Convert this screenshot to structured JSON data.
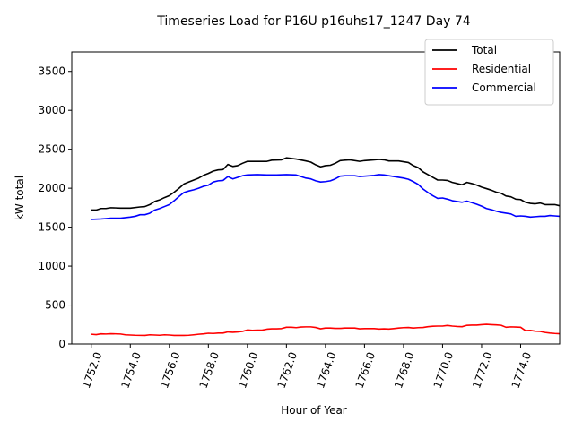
{
  "chart_data": {
    "type": "line",
    "title": "Timeseries Load for P16U p16uhs17_1247  Day 74",
    "xlabel": "Hour of Year",
    "ylabel": "kW total",
    "xlim": [
      1751.0,
      1776.0
    ],
    "ylim": [
      0,
      3750
    ],
    "xticks": [
      1752,
      1754,
      1756,
      1758,
      1760,
      1762,
      1764,
      1766,
      1768,
      1770,
      1772,
      1774
    ],
    "xtick_labels": [
      "1752.0",
      "1754.0",
      "1756.0",
      "1758.0",
      "1760.0",
      "1762.0",
      "1764.0",
      "1766.0",
      "1768.0",
      "1770.0",
      "1772.0",
      "1774.0"
    ],
    "yticks": [
      0,
      500,
      1000,
      1500,
      2000,
      2500,
      3000,
      3500
    ],
    "ytick_labels": [
      "0",
      "500",
      "1000",
      "1500",
      "2000",
      "2500",
      "3000",
      "3500"
    ],
    "legend_position": "top-right",
    "series": [
      {
        "name": "Total",
        "color": "#000000",
        "points": [
          [
            1752.0,
            1720
          ],
          [
            1752.25,
            1720
          ],
          [
            1752.5,
            1740
          ],
          [
            1752.75,
            1740
          ],
          [
            1753.0,
            1750
          ],
          [
            1753.5,
            1745
          ],
          [
            1754.0,
            1745
          ],
          [
            1754.5,
            1760
          ],
          [
            1754.75,
            1765
          ],
          [
            1755.0,
            1790
          ],
          [
            1755.25,
            1830
          ],
          [
            1755.5,
            1850
          ],
          [
            1755.75,
            1880
          ],
          [
            1756.0,
            1905
          ],
          [
            1756.25,
            1950
          ],
          [
            1756.5,
            2000
          ],
          [
            1756.75,
            2055
          ],
          [
            1757.0,
            2080
          ],
          [
            1757.25,
            2105
          ],
          [
            1757.5,
            2130
          ],
          [
            1757.75,
            2165
          ],
          [
            1758.0,
            2190
          ],
          [
            1758.25,
            2220
          ],
          [
            1758.5,
            2235
          ],
          [
            1758.75,
            2240
          ],
          [
            1759.0,
            2305
          ],
          [
            1759.25,
            2280
          ],
          [
            1759.5,
            2290
          ],
          [
            1759.75,
            2320
          ],
          [
            1760.0,
            2345
          ],
          [
            1760.5,
            2345
          ],
          [
            1761.0,
            2345
          ],
          [
            1761.25,
            2360
          ],
          [
            1761.75,
            2365
          ],
          [
            1762.0,
            2390
          ],
          [
            1762.5,
            2375
          ],
          [
            1763.0,
            2350
          ],
          [
            1763.25,
            2335
          ],
          [
            1763.5,
            2300
          ],
          [
            1763.75,
            2275
          ],
          [
            1764.0,
            2290
          ],
          [
            1764.25,
            2295
          ],
          [
            1764.5,
            2320
          ],
          [
            1764.75,
            2355
          ],
          [
            1765.0,
            2360
          ],
          [
            1765.25,
            2365
          ],
          [
            1765.75,
            2345
          ],
          [
            1766.0,
            2355
          ],
          [
            1766.5,
            2365
          ],
          [
            1766.75,
            2370
          ],
          [
            1767.0,
            2365
          ],
          [
            1767.25,
            2350
          ],
          [
            1767.75,
            2350
          ],
          [
            1768.0,
            2340
          ],
          [
            1768.25,
            2330
          ],
          [
            1768.5,
            2290
          ],
          [
            1768.75,
            2265
          ],
          [
            1769.0,
            2210
          ],
          [
            1769.25,
            2175
          ],
          [
            1769.5,
            2140
          ],
          [
            1769.75,
            2105
          ],
          [
            1770.0,
            2105
          ],
          [
            1770.25,
            2100
          ],
          [
            1770.5,
            2075
          ],
          [
            1770.75,
            2060
          ],
          [
            1771.0,
            2045
          ],
          [
            1771.25,
            2075
          ],
          [
            1771.5,
            2060
          ],
          [
            1771.75,
            2040
          ],
          [
            1772.0,
            2015
          ],
          [
            1772.25,
            1995
          ],
          [
            1772.5,
            1975
          ],
          [
            1772.75,
            1950
          ],
          [
            1773.0,
            1935
          ],
          [
            1773.25,
            1900
          ],
          [
            1773.5,
            1890
          ],
          [
            1773.75,
            1860
          ],
          [
            1774.0,
            1855
          ],
          [
            1774.25,
            1820
          ],
          [
            1774.5,
            1805
          ],
          [
            1774.75,
            1800
          ],
          [
            1775.0,
            1810
          ],
          [
            1775.25,
            1790
          ],
          [
            1775.5,
            1790
          ],
          [
            1775.75,
            1790
          ],
          [
            1776.0,
            1775
          ]
        ]
      },
      {
        "name": "Residential",
        "color": "#ff0000",
        "points": [
          [
            1752.0,
            125
          ],
          [
            1752.25,
            120
          ],
          [
            1752.5,
            130
          ],
          [
            1752.75,
            128
          ],
          [
            1753.0,
            132
          ],
          [
            1753.5,
            128
          ],
          [
            1753.75,
            118
          ],
          [
            1754.0,
            115
          ],
          [
            1754.25,
            112
          ],
          [
            1754.75,
            110
          ],
          [
            1755.0,
            118
          ],
          [
            1755.25,
            115
          ],
          [
            1755.5,
            112
          ],
          [
            1755.75,
            118
          ],
          [
            1756.0,
            115
          ],
          [
            1756.25,
            110
          ],
          [
            1756.75,
            110
          ],
          [
            1757.0,
            112
          ],
          [
            1757.25,
            118
          ],
          [
            1757.5,
            125
          ],
          [
            1757.75,
            130
          ],
          [
            1758.0,
            138
          ],
          [
            1758.25,
            135
          ],
          [
            1758.5,
            140
          ],
          [
            1758.75,
            140
          ],
          [
            1759.0,
            155
          ],
          [
            1759.25,
            150
          ],
          [
            1759.5,
            155
          ],
          [
            1759.75,
            162
          ],
          [
            1760.0,
            180
          ],
          [
            1760.25,
            175
          ],
          [
            1760.5,
            178
          ],
          [
            1760.75,
            178
          ],
          [
            1761.0,
            190
          ],
          [
            1761.25,
            195
          ],
          [
            1761.5,
            195
          ],
          [
            1761.75,
            198
          ],
          [
            1762.0,
            215
          ],
          [
            1762.25,
            215
          ],
          [
            1762.5,
            210
          ],
          [
            1762.75,
            218
          ],
          [
            1763.0,
            220
          ],
          [
            1763.25,
            220
          ],
          [
            1763.5,
            212
          ],
          [
            1763.75,
            195
          ],
          [
            1764.0,
            205
          ],
          [
            1764.25,
            205
          ],
          [
            1764.5,
            200
          ],
          [
            1764.75,
            200
          ],
          [
            1765.0,
            205
          ],
          [
            1765.25,
            205
          ],
          [
            1765.5,
            205
          ],
          [
            1765.75,
            195
          ],
          [
            1766.0,
            198
          ],
          [
            1766.5,
            198
          ],
          [
            1766.75,
            192
          ],
          [
            1767.0,
            195
          ],
          [
            1767.25,
            192
          ],
          [
            1767.5,
            198
          ],
          [
            1767.75,
            205
          ],
          [
            1768.0,
            210
          ],
          [
            1768.25,
            212
          ],
          [
            1768.5,
            205
          ],
          [
            1768.75,
            210
          ],
          [
            1769.0,
            212
          ],
          [
            1769.25,
            222
          ],
          [
            1769.5,
            228
          ],
          [
            1769.75,
            230
          ],
          [
            1770.0,
            230
          ],
          [
            1770.25,
            238
          ],
          [
            1770.5,
            230
          ],
          [
            1770.75,
            225
          ],
          [
            1771.0,
            222
          ],
          [
            1771.25,
            240
          ],
          [
            1771.5,
            242
          ],
          [
            1771.75,
            242
          ],
          [
            1772.0,
            248
          ],
          [
            1772.25,
            252
          ],
          [
            1772.5,
            248
          ],
          [
            1772.75,
            245
          ],
          [
            1773.0,
            240
          ],
          [
            1773.25,
            215
          ],
          [
            1773.5,
            220
          ],
          [
            1773.75,
            218
          ],
          [
            1774.0,
            215
          ],
          [
            1774.25,
            172
          ],
          [
            1774.5,
            175
          ],
          [
            1774.75,
            165
          ],
          [
            1775.0,
            162
          ],
          [
            1775.25,
            148
          ],
          [
            1775.5,
            140
          ],
          [
            1775.75,
            135
          ],
          [
            1776.0,
            132
          ]
        ]
      },
      {
        "name": "Commercial",
        "color": "#0000ff",
        "points": [
          [
            1752.0,
            1600
          ],
          [
            1752.5,
            1605
          ],
          [
            1752.75,
            1610
          ],
          [
            1753.0,
            1615
          ],
          [
            1753.5,
            1615
          ],
          [
            1754.0,
            1630
          ],
          [
            1754.25,
            1640
          ],
          [
            1754.5,
            1660
          ],
          [
            1754.75,
            1660
          ],
          [
            1755.0,
            1680
          ],
          [
            1755.25,
            1720
          ],
          [
            1755.5,
            1740
          ],
          [
            1755.75,
            1765
          ],
          [
            1756.0,
            1790
          ],
          [
            1756.25,
            1840
          ],
          [
            1756.5,
            1895
          ],
          [
            1756.75,
            1945
          ],
          [
            1757.0,
            1965
          ],
          [
            1757.25,
            1980
          ],
          [
            1757.5,
            2000
          ],
          [
            1757.75,
            2025
          ],
          [
            1758.0,
            2040
          ],
          [
            1758.25,
            2080
          ],
          [
            1758.5,
            2095
          ],
          [
            1758.75,
            2100
          ],
          [
            1759.0,
            2150
          ],
          [
            1759.25,
            2120
          ],
          [
            1759.5,
            2140
          ],
          [
            1759.75,
            2160
          ],
          [
            1760.0,
            2170
          ],
          [
            1760.5,
            2175
          ],
          [
            1761.0,
            2170
          ],
          [
            1761.5,
            2170
          ],
          [
            1762.0,
            2175
          ],
          [
            1762.5,
            2170
          ],
          [
            1762.75,
            2150
          ],
          [
            1763.0,
            2130
          ],
          [
            1763.25,
            2120
          ],
          [
            1763.5,
            2095
          ],
          [
            1763.75,
            2080
          ],
          [
            1764.0,
            2085
          ],
          [
            1764.25,
            2095
          ],
          [
            1764.5,
            2120
          ],
          [
            1764.75,
            2155
          ],
          [
            1765.0,
            2160
          ],
          [
            1765.5,
            2160
          ],
          [
            1765.75,
            2150
          ],
          [
            1766.0,
            2155
          ],
          [
            1766.5,
            2165
          ],
          [
            1766.75,
            2175
          ],
          [
            1767.0,
            2170
          ],
          [
            1767.25,
            2160
          ],
          [
            1767.5,
            2150
          ],
          [
            1767.75,
            2140
          ],
          [
            1768.0,
            2130
          ],
          [
            1768.25,
            2115
          ],
          [
            1768.5,
            2085
          ],
          [
            1768.75,
            2050
          ],
          [
            1769.0,
            1990
          ],
          [
            1769.25,
            1945
          ],
          [
            1769.5,
            1905
          ],
          [
            1769.75,
            1870
          ],
          [
            1770.0,
            1875
          ],
          [
            1770.25,
            1860
          ],
          [
            1770.5,
            1840
          ],
          [
            1770.75,
            1830
          ],
          [
            1771.0,
            1820
          ],
          [
            1771.25,
            1835
          ],
          [
            1771.5,
            1815
          ],
          [
            1771.75,
            1795
          ],
          [
            1772.0,
            1770
          ],
          [
            1772.25,
            1740
          ],
          [
            1772.5,
            1725
          ],
          [
            1772.75,
            1705
          ],
          [
            1773.0,
            1690
          ],
          [
            1773.25,
            1680
          ],
          [
            1773.5,
            1670
          ],
          [
            1773.75,
            1640
          ],
          [
            1774.0,
            1645
          ],
          [
            1774.25,
            1640
          ],
          [
            1774.5,
            1630
          ],
          [
            1774.75,
            1635
          ],
          [
            1775.0,
            1640
          ],
          [
            1775.25,
            1640
          ],
          [
            1775.5,
            1650
          ],
          [
            1775.75,
            1645
          ],
          [
            1776.0,
            1640
          ]
        ]
      }
    ]
  }
}
